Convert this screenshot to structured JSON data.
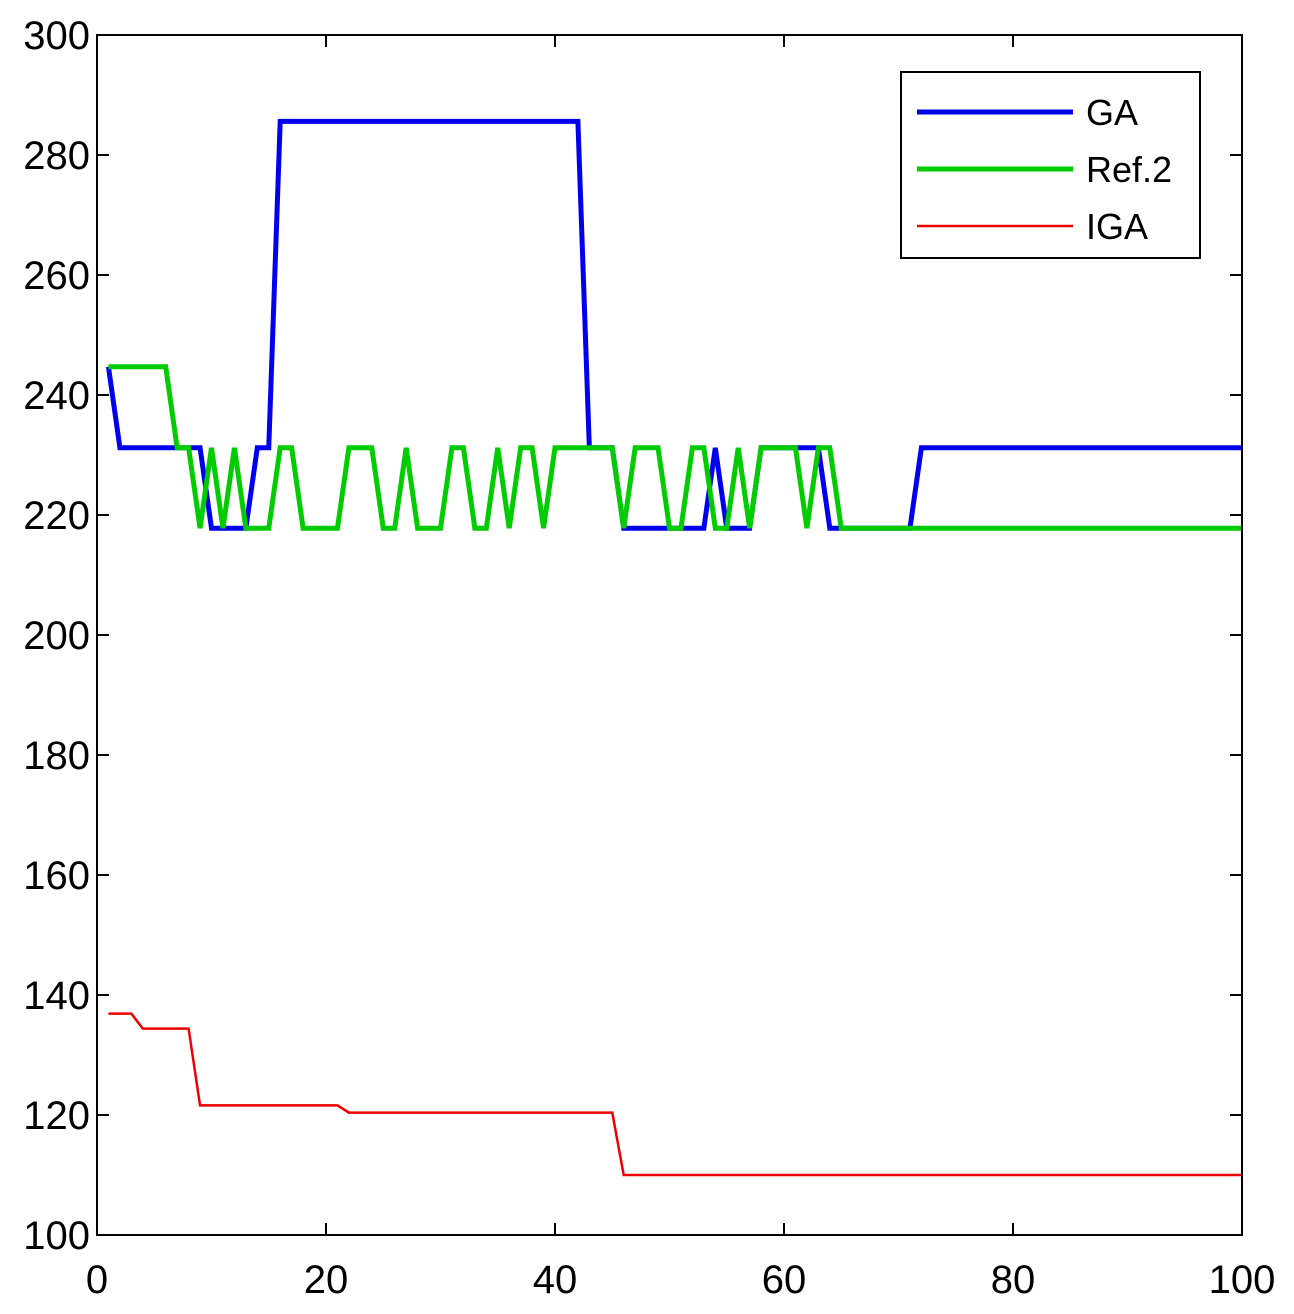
{
  "chart_data": {
    "type": "line",
    "title": "",
    "xlabel": "",
    "ylabel": "",
    "xlim": [
      0,
      100
    ],
    "ylim": [
      100,
      300
    ],
    "xticks": [
      0,
      20,
      40,
      60,
      80,
      100
    ],
    "yticks": [
      100,
      120,
      140,
      160,
      180,
      200,
      220,
      240,
      260,
      280,
      300
    ],
    "grid": false,
    "legend_position": "top-right",
    "series": [
      {
        "name": "GA",
        "color": "#0000ee",
        "line_weight": "thick",
        "points": [
          [
            1,
            244.7
          ],
          [
            2,
            231.2
          ],
          [
            9,
            231.2
          ],
          [
            10,
            217.8
          ],
          [
            13,
            217.8
          ],
          [
            14,
            231.2
          ],
          [
            15,
            231.2
          ],
          [
            16,
            285.6
          ],
          [
            42,
            285.6
          ],
          [
            43,
            231.2
          ],
          [
            45,
            231.2
          ],
          [
            46,
            217.8
          ],
          [
            53,
            217.8
          ],
          [
            54,
            231.2
          ],
          [
            55,
            217.8
          ],
          [
            57,
            217.8
          ],
          [
            58,
            231.2
          ],
          [
            63,
            231.2
          ],
          [
            64,
            217.8
          ],
          [
            71,
            217.8
          ],
          [
            72,
            231.2
          ],
          [
            100,
            231.2
          ]
        ]
      },
      {
        "name": "Ref.2",
        "color": "#00cc00",
        "line_weight": "thick",
        "points": [
          [
            1,
            244.7
          ],
          [
            6,
            244.7
          ],
          [
            7,
            231.2
          ],
          [
            8,
            231.2
          ],
          [
            9,
            217.8
          ],
          [
            10,
            231.2
          ],
          [
            11,
            217.8
          ],
          [
            12,
            231.2
          ],
          [
            13,
            217.8
          ],
          [
            15,
            217.8
          ],
          [
            16,
            231.2
          ],
          [
            17,
            231.2
          ],
          [
            18,
            217.8
          ],
          [
            21,
            217.8
          ],
          [
            22,
            231.2
          ],
          [
            24,
            231.2
          ],
          [
            25,
            217.8
          ],
          [
            26,
            217.8
          ],
          [
            27,
            231.2
          ],
          [
            28,
            217.8
          ],
          [
            30,
            217.8
          ],
          [
            31,
            231.2
          ],
          [
            32,
            231.2
          ],
          [
            33,
            217.8
          ],
          [
            34,
            217.8
          ],
          [
            35,
            231.2
          ],
          [
            36,
            217.8
          ],
          [
            37,
            231.2
          ],
          [
            38,
            231.2
          ],
          [
            39,
            217.8
          ],
          [
            40,
            231.2
          ],
          [
            45,
            231.2
          ],
          [
            46,
            217.8
          ],
          [
            47,
            231.2
          ],
          [
            49,
            231.2
          ],
          [
            50,
            217.8
          ],
          [
            51,
            217.8
          ],
          [
            52,
            231.2
          ],
          [
            53,
            231.2
          ],
          [
            54,
            217.8
          ],
          [
            55,
            217.8
          ],
          [
            56,
            231.2
          ],
          [
            57,
            217.8
          ],
          [
            58,
            231.2
          ],
          [
            61,
            231.2
          ],
          [
            62,
            217.8
          ],
          [
            63,
            231.2
          ],
          [
            64,
            231.2
          ],
          [
            65,
            217.8
          ],
          [
            100,
            217.8
          ]
        ]
      },
      {
        "name": "IGA",
        "color": "#ee0000",
        "line_weight": "thin",
        "points": [
          [
            1,
            136.9
          ],
          [
            3,
            136.9
          ],
          [
            4,
            134.4
          ],
          [
            8,
            134.4
          ],
          [
            9,
            121.6
          ],
          [
            21,
            121.6
          ],
          [
            22,
            120.4
          ],
          [
            45,
            120.4
          ],
          [
            46,
            110.0
          ],
          [
            100,
            110.0
          ]
        ]
      }
    ]
  }
}
